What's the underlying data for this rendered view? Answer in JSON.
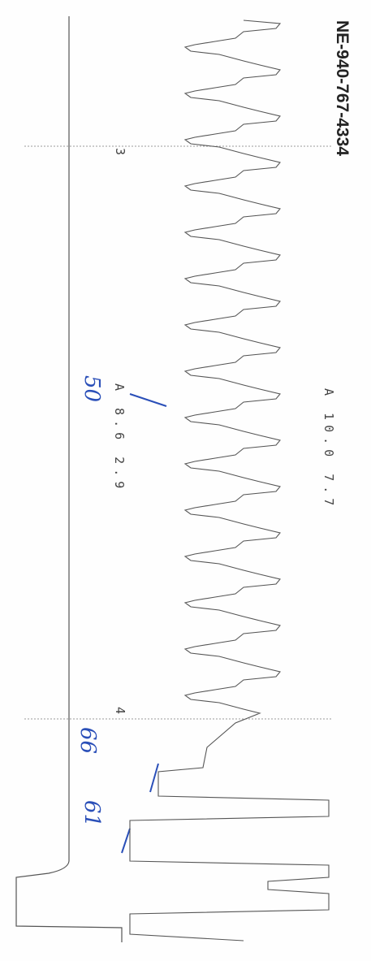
{
  "document": {
    "record_id": "NE-940-767-4334",
    "readings": [
      "A 10.0 7.7",
      "A 8.6 2.9"
    ],
    "markers": [
      "3",
      "4"
    ],
    "handwritten": [
      "50",
      "66",
      "61"
    ]
  }
}
